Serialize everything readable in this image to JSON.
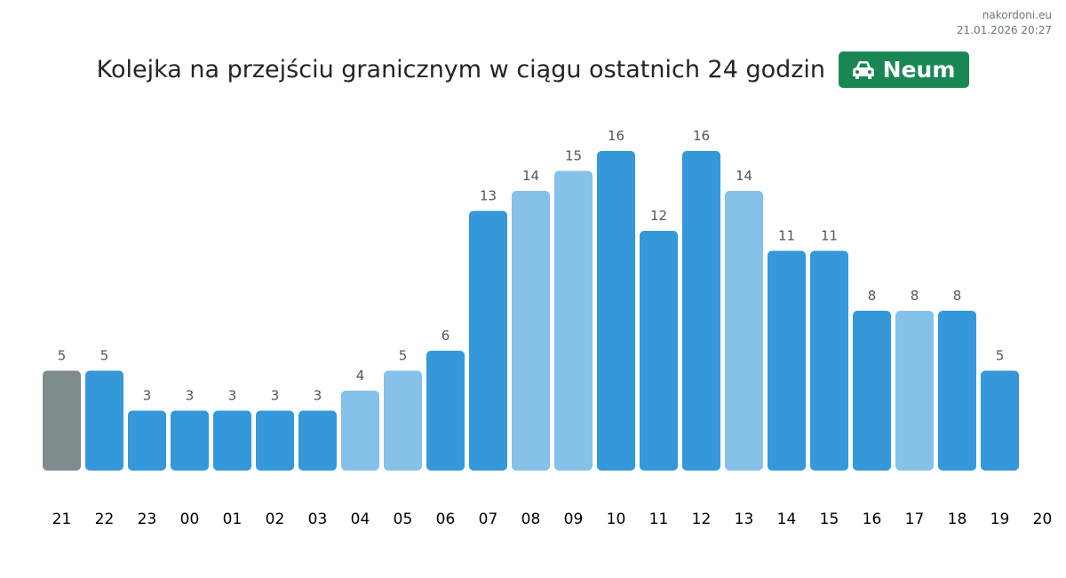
{
  "site": {
    "name": "nakordoni.eu",
    "timestamp": "21.01.2026 20:27"
  },
  "header": {
    "title": "Kolejka na przejściu granicznym w ciągu ostatnich 24 godzin",
    "badge_icon": "car-icon",
    "badge_label": "Neum"
  },
  "colors": {
    "current": "#7f8c8d",
    "dark": "#3498db",
    "light": "#85c1e9",
    "badge": "#198754"
  },
  "chart_data": {
    "type": "bar",
    "title": "Kolejka na przejściu granicznym w ciągu ostatnich 24 godzin",
    "xlabel": "",
    "ylabel": "",
    "categories": [
      "21",
      "22",
      "23",
      "00",
      "01",
      "02",
      "03",
      "04",
      "05",
      "06",
      "07",
      "08",
      "09",
      "10",
      "11",
      "12",
      "13",
      "14",
      "15",
      "16",
      "17",
      "18",
      "19"
    ],
    "extra_tick": "20",
    "values": [
      5,
      5,
      3,
      3,
      3,
      3,
      3,
      4,
      5,
      6,
      13,
      14,
      15,
      16,
      12,
      16,
      14,
      11,
      11,
      8,
      8,
      8,
      5
    ],
    "bar_shades": [
      "current",
      "dark",
      "dark",
      "dark",
      "dark",
      "dark",
      "dark",
      "light",
      "light",
      "dark",
      "dark",
      "light",
      "light",
      "dark",
      "dark",
      "dark",
      "light",
      "dark",
      "dark",
      "dark",
      "light",
      "dark",
      "dark"
    ],
    "ylim": [
      0,
      16
    ],
    "grid": false
  }
}
